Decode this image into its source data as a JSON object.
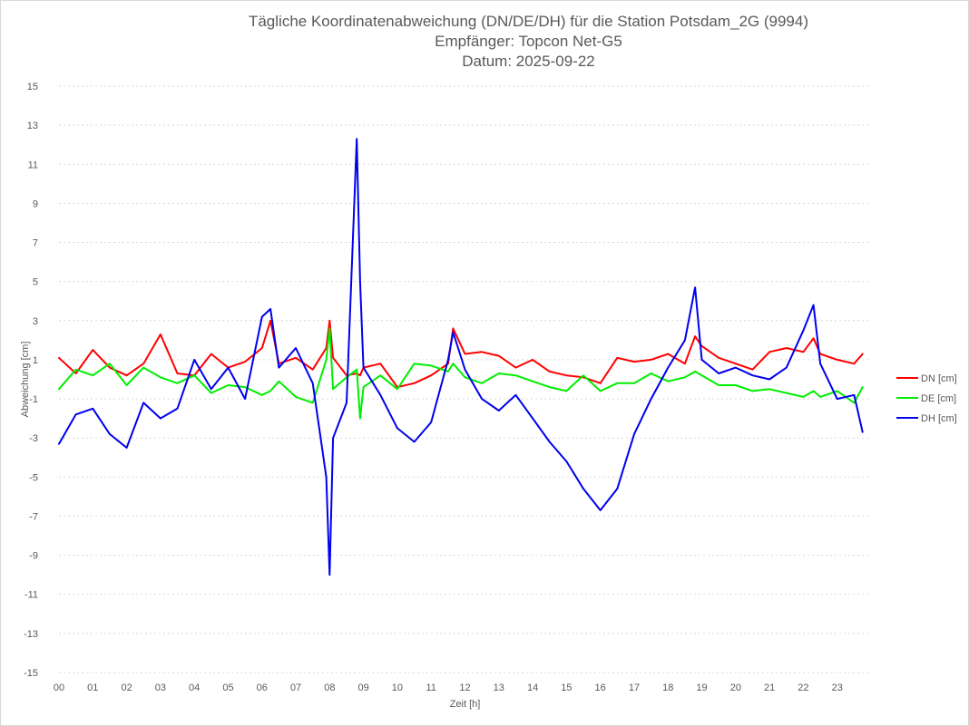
{
  "chart_data": {
    "type": "line",
    "title": [
      "Tägliche Koordinatenabweichung (DN/DE/DH) für die Station Potsdam_2G (9994)",
      "Empfänger: Topcon Net-G5",
      "Datum: 2025-09-22"
    ],
    "xlabel": "Zeit [h]",
    "ylabel": "Abweichung [cm]",
    "x_range": [
      0,
      24
    ],
    "ylim": [
      -15,
      15
    ],
    "y_ticks": [
      -15,
      -13,
      -11,
      -9,
      -7,
      -5,
      -3,
      -1,
      1,
      3,
      5,
      7,
      9,
      11,
      13,
      15
    ],
    "x_tick_labels": [
      "00",
      "01",
      "02",
      "03",
      "04",
      "05",
      "06",
      "07",
      "08",
      "09",
      "10",
      "11",
      "12",
      "13",
      "14",
      "15",
      "16",
      "17",
      "18",
      "19",
      "20",
      "21",
      "22",
      "23"
    ],
    "grid": true,
    "legend_position": "right",
    "x": [
      0.0,
      0.5,
      1.0,
      1.5,
      2.0,
      2.5,
      3.0,
      3.5,
      4.0,
      4.5,
      5.0,
      5.5,
      6.0,
      6.25,
      6.5,
      7.0,
      7.5,
      7.9,
      8.0,
      8.1,
      8.5,
      8.8,
      8.9,
      9.0,
      9.5,
      10.0,
      10.5,
      11.0,
      11.5,
      11.65,
      12.0,
      12.5,
      13.0,
      13.5,
      14.0,
      14.5,
      15.0,
      15.5,
      16.0,
      16.5,
      17.0,
      17.5,
      18.0,
      18.5,
      18.8,
      19.0,
      19.5,
      20.0,
      20.5,
      21.0,
      21.5,
      22.0,
      22.3,
      22.5,
      23.0,
      23.5,
      23.75
    ],
    "series": [
      {
        "name": "DN [cm]",
        "color": "#ff0000",
        "values": [
          1.1,
          0.3,
          1.5,
          0.6,
          0.2,
          0.8,
          2.3,
          0.3,
          0.2,
          1.3,
          0.6,
          0.9,
          1.6,
          3.0,
          0.8,
          1.1,
          0.5,
          1.6,
          3.0,
          1.1,
          0.2,
          0.3,
          0.2,
          0.6,
          0.8,
          -0.4,
          -0.2,
          0.2,
          0.8,
          2.6,
          1.3,
          1.4,
          1.2,
          0.6,
          1.0,
          0.4,
          0.2,
          0.1,
          -0.2,
          1.1,
          0.9,
          1.0,
          1.3,
          0.8,
          2.2,
          1.7,
          1.1,
          0.8,
          0.5,
          1.4,
          1.6,
          1.4,
          2.1,
          1.3,
          1.0,
          0.8,
          1.3
        ]
      },
      {
        "name": "DE [cm]",
        "color": "#00ee00",
        "values": [
          -0.5,
          0.5,
          0.2,
          0.8,
          -0.3,
          0.6,
          0.1,
          -0.2,
          0.2,
          -0.7,
          -0.3,
          -0.4,
          -0.8,
          -0.6,
          -0.1,
          -0.9,
          -1.2,
          1.0,
          2.6,
          -0.5,
          0.1,
          0.5,
          -2.0,
          -0.4,
          0.2,
          -0.5,
          0.8,
          0.7,
          0.4,
          0.8,
          0.1,
          -0.2,
          0.3,
          0.2,
          -0.1,
          -0.4,
          -0.6,
          0.2,
          -0.6,
          -0.2,
          -0.2,
          0.3,
          -0.1,
          0.1,
          0.4,
          0.2,
          -0.3,
          -0.3,
          -0.6,
          -0.5,
          -0.7,
          -0.9,
          -0.6,
          -0.9,
          -0.6,
          -1.2,
          -0.4
        ]
      },
      {
        "name": "DH [cm]",
        "color": "#0000ee",
        "values": [
          -3.3,
          -1.8,
          -1.5,
          -2.8,
          -3.5,
          -1.2,
          -2.0,
          -1.5,
          1.0,
          -0.5,
          0.6,
          -1.0,
          3.2,
          3.6,
          0.6,
          1.6,
          -0.2,
          -5.0,
          -10.0,
          -3.0,
          -1.2,
          12.3,
          5.0,
          0.6,
          -0.8,
          -2.5,
          -3.2,
          -2.2,
          1.0,
          2.4,
          0.5,
          -1.0,
          -1.6,
          -0.8,
          -2.0,
          -3.2,
          -4.2,
          -5.6,
          -6.7,
          -5.6,
          -2.8,
          -1.0,
          0.6,
          2.0,
          4.7,
          1.0,
          0.3,
          0.6,
          0.2,
          0.0,
          0.6,
          2.5,
          3.8,
          0.8,
          -1.0,
          -0.8,
          -2.7
        ]
      }
    ]
  }
}
